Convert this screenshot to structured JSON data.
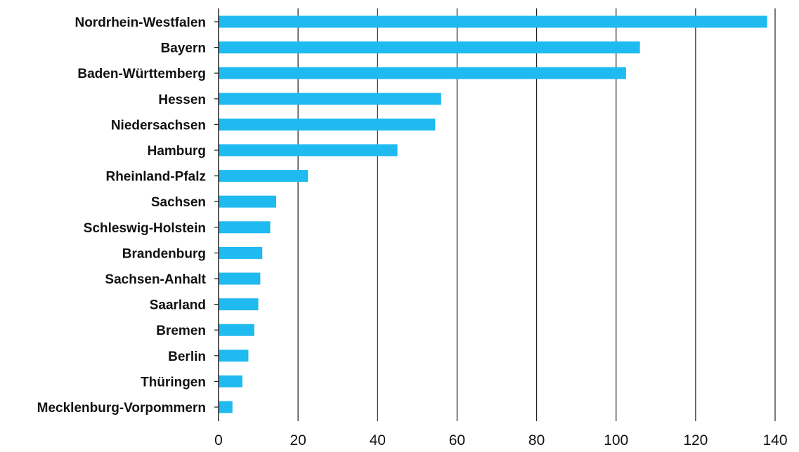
{
  "chart_data": {
    "type": "bar",
    "orientation": "horizontal",
    "categories": [
      "Nordrhein-Westfalen",
      "Bayern",
      "Baden-Württemberg",
      "Hessen",
      "Niedersachsen",
      "Hamburg",
      "Rheinland-Pfalz",
      "Sachsen",
      "Schleswig-Holstein",
      "Brandenburg",
      "Sachsen-Anhalt",
      "Saarland",
      "Bremen",
      "Berlin",
      "Thüringen",
      "Mecklenburg-Vorpommern"
    ],
    "values": [
      138,
      106,
      102.5,
      56,
      54.5,
      45,
      22.5,
      14.5,
      13,
      11,
      10.5,
      10,
      9,
      7.5,
      6,
      3.5
    ],
    "xlim": [
      0,
      140
    ],
    "xticks": [
      "0",
      "20",
      "40",
      "60",
      "80",
      "100",
      "120",
      "140"
    ],
    "grid": "vertical",
    "legend": "none",
    "bar_color": "#1fbaf0",
    "axis_color": "#222222",
    "title": "",
    "xlabel": "",
    "ylabel": ""
  }
}
